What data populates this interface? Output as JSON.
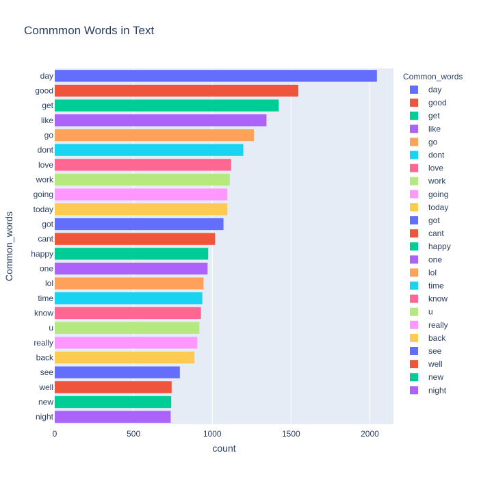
{
  "chart_data": {
    "type": "bar",
    "orientation": "horizontal",
    "title": "Commmon Words in Text",
    "xlabel": "count",
    "ylabel": "Common_words",
    "legend_title": "Common_words",
    "legend_position": "right",
    "grid": true,
    "xlim": [
      0,
      2150
    ],
    "xticks": [
      0,
      500,
      1000,
      1500,
      2000
    ],
    "xtick_labels": [
      "0",
      "500",
      "1000",
      "1500",
      "2000"
    ],
    "categories": [
      "day",
      "good",
      "get",
      "like",
      "go",
      "dont",
      "love",
      "work",
      "going",
      "today",
      "got",
      "cant",
      "happy",
      "one",
      "lol",
      "time",
      "know",
      "u",
      "really",
      "back",
      "see",
      "well",
      "new",
      "night"
    ],
    "values": [
      2045,
      1546,
      1422,
      1344,
      1264,
      1197,
      1120,
      1111,
      1096,
      1096,
      1071,
      1018,
      974,
      970,
      944,
      937,
      928,
      918,
      905,
      887,
      794,
      742,
      739,
      736
    ],
    "colors": [
      "#636efa",
      "#ef553b",
      "#00cc96",
      "#ab63fa",
      "#ffa15a",
      "#19d3f3",
      "#ff6692",
      "#b6e880",
      "#ff97ff",
      "#fecb52",
      "#636efa",
      "#ef553b",
      "#00cc96",
      "#ab63fa",
      "#ffa15a",
      "#19d3f3",
      "#ff6692",
      "#b6e880",
      "#ff97ff",
      "#fecb52",
      "#636efa",
      "#ef553b",
      "#00cc96",
      "#ab63fa"
    ],
    "plot_bg": "#e5ecf6",
    "text_color": "#2a3f5f"
  }
}
